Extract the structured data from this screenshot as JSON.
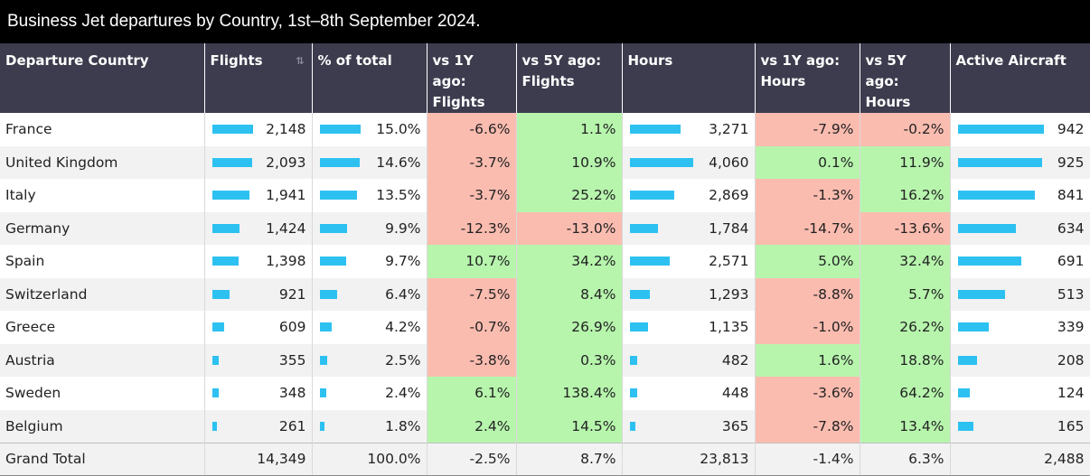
{
  "title": "Business Jet departures by Country, 1st–8th September 2024.",
  "headers": [
    {
      "line1": "Departure Country",
      "line2": ""
    },
    {
      "line1": "Flights",
      "line2": ""
    },
    {
      "line1": "% of total",
      "line2": ""
    },
    {
      "line1": "vs 1Y ago:",
      "line2": "Flights"
    },
    {
      "line1": "vs 5Y ago:",
      "line2": "Flights"
    },
    {
      "line1": "Hours",
      "line2": ""
    },
    {
      "line1": "vs 1Y ago:",
      "line2": "Hours"
    },
    {
      "line1": "vs 5Y ago:",
      "line2": "Hours"
    },
    {
      "line1": "Active Aircraft",
      "line2": ""
    }
  ],
  "sort_icon": "sort-icon",
  "colors": {
    "bar": "#2dc1f1",
    "negative": "#fbbcb0",
    "positive": "#b7f5ad",
    "header": "#3c3c4e"
  },
  "rows": [
    {
      "country": "France",
      "flights": "2,148",
      "flights_num": 2148,
      "pct": "15.0%",
      "pct_num": 15.0,
      "vs1y_f": "-6.6%",
      "vs5y_f": "1.1%",
      "hours": "3,271",
      "hours_num": 3271,
      "vs1y_h": "-7.9%",
      "vs5y_h": "-0.2%",
      "aircraft": "942",
      "aircraft_num": 942
    },
    {
      "country": "United Kingdom",
      "flights": "2,093",
      "flights_num": 2093,
      "pct": "14.6%",
      "pct_num": 14.6,
      "vs1y_f": "-3.7%",
      "vs5y_f": "10.9%",
      "hours": "4,060",
      "hours_num": 4060,
      "vs1y_h": "0.1%",
      "vs5y_h": "11.9%",
      "aircraft": "925",
      "aircraft_num": 925
    },
    {
      "country": "Italy",
      "flights": "1,941",
      "flights_num": 1941,
      "pct": "13.5%",
      "pct_num": 13.5,
      "vs1y_f": "-3.7%",
      "vs5y_f": "25.2%",
      "hours": "2,869",
      "hours_num": 2869,
      "vs1y_h": "-1.3%",
      "vs5y_h": "16.2%",
      "aircraft": "841",
      "aircraft_num": 841
    },
    {
      "country": "Germany",
      "flights": "1,424",
      "flights_num": 1424,
      "pct": "9.9%",
      "pct_num": 9.9,
      "vs1y_f": "-12.3%",
      "vs5y_f": "-13.0%",
      "hours": "1,784",
      "hours_num": 1784,
      "vs1y_h": "-14.7%",
      "vs5y_h": "-13.6%",
      "aircraft": "634",
      "aircraft_num": 634
    },
    {
      "country": "Spain",
      "flights": "1,398",
      "flights_num": 1398,
      "pct": "9.7%",
      "pct_num": 9.7,
      "vs1y_f": "10.7%",
      "vs5y_f": "34.2%",
      "hours": "2,571",
      "hours_num": 2571,
      "vs1y_h": "5.0%",
      "vs5y_h": "32.4%",
      "aircraft": "691",
      "aircraft_num": 691
    },
    {
      "country": "Switzerland",
      "flights": "921",
      "flights_num": 921,
      "pct": "6.4%",
      "pct_num": 6.4,
      "vs1y_f": "-7.5%",
      "vs5y_f": "8.4%",
      "hours": "1,293",
      "hours_num": 1293,
      "vs1y_h": "-8.8%",
      "vs5y_h": "5.7%",
      "aircraft": "513",
      "aircraft_num": 513
    },
    {
      "country": "Greece",
      "flights": "609",
      "flights_num": 609,
      "pct": "4.2%",
      "pct_num": 4.2,
      "vs1y_f": "-0.7%",
      "vs5y_f": "26.9%",
      "hours": "1,135",
      "hours_num": 1135,
      "vs1y_h": "-1.0%",
      "vs5y_h": "26.2%",
      "aircraft": "339",
      "aircraft_num": 339
    },
    {
      "country": "Austria",
      "flights": "355",
      "flights_num": 355,
      "pct": "2.5%",
      "pct_num": 2.5,
      "vs1y_f": "-3.8%",
      "vs5y_f": "0.3%",
      "hours": "482",
      "hours_num": 482,
      "vs1y_h": "1.6%",
      "vs5y_h": "18.8%",
      "aircraft": "208",
      "aircraft_num": 208
    },
    {
      "country": "Sweden",
      "flights": "348",
      "flights_num": 348,
      "pct": "2.4%",
      "pct_num": 2.4,
      "vs1y_f": "6.1%",
      "vs5y_f": "138.4%",
      "hours": "448",
      "hours_num": 448,
      "vs1y_h": "-3.6%",
      "vs5y_h": "64.2%",
      "aircraft": "124",
      "aircraft_num": 124
    },
    {
      "country": "Belgium",
      "flights": "261",
      "flights_num": 261,
      "pct": "1.8%",
      "pct_num": 1.8,
      "vs1y_f": "2.4%",
      "vs5y_f": "14.5%",
      "hours": "365",
      "hours_num": 365,
      "vs1y_h": "-7.8%",
      "vs5y_h": "13.4%",
      "aircraft": "165",
      "aircraft_num": 165
    }
  ],
  "total": {
    "label": "Grand Total",
    "flights": "14,349",
    "pct": "100.0%",
    "vs1y_f": "-2.5%",
    "vs5y_f": "8.7%",
    "hours": "23,813",
    "vs1y_h": "-1.4%",
    "vs5y_h": "6.3%",
    "aircraft": "2,488"
  }
}
